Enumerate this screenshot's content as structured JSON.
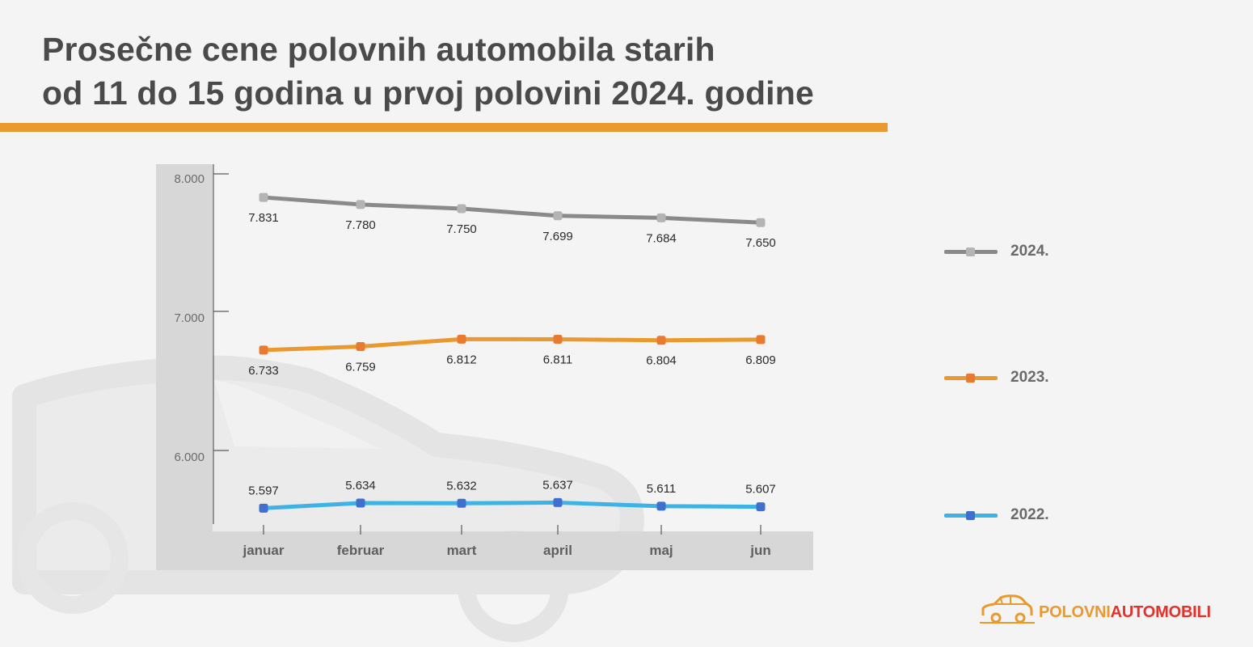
{
  "title": {
    "line1": "Prosečne cene polovnih automobila starih",
    "line2": "od 11 do 15 godina  u prvoj polovini 2024. godine"
  },
  "brand": {
    "part1": "POLOVNI",
    "part2": "AUTOMOBILI",
    "icon": "car-logo-icon"
  },
  "colors": {
    "accent": "#e9992e",
    "series_2024": "#8a8a8a",
    "series_2024_marker": "#b4b4b4",
    "series_2023": "#e9992e",
    "series_2023_marker": "#ea7a2f",
    "series_2022": "#3fb2e5",
    "series_2022_marker": "#3f6fcf"
  },
  "chart_data": {
    "type": "line",
    "categories": [
      "januar",
      "februar",
      "mart",
      "april",
      "maj",
      "jun"
    ],
    "yticks": [
      "8.000",
      "7.000",
      "6.000"
    ],
    "ytick_values": [
      8000,
      7000,
      6000
    ],
    "ylim": [
      5500,
      8000
    ],
    "grid": false,
    "legend_position": "right",
    "series": [
      {
        "name": "2024.",
        "values": [
          7831,
          7780,
          7750,
          7699,
          7684,
          7650
        ],
        "labels": [
          "7.831",
          "7.780",
          "7.750",
          "7.699",
          "7.684",
          "7.650"
        ]
      },
      {
        "name": "2023.",
        "values": [
          6733,
          6759,
          6812,
          6811,
          6804,
          6809
        ],
        "labels": [
          "6.733",
          "6.759",
          "6.812",
          "6.811",
          "6.804",
          "6.809"
        ]
      },
      {
        "name": "2022.",
        "values": [
          5597,
          5634,
          5632,
          5637,
          5611,
          5607
        ],
        "labels": [
          "5.597",
          "5.634",
          "5.632",
          "5.637",
          "5.611",
          "5.607"
        ]
      }
    ]
  }
}
